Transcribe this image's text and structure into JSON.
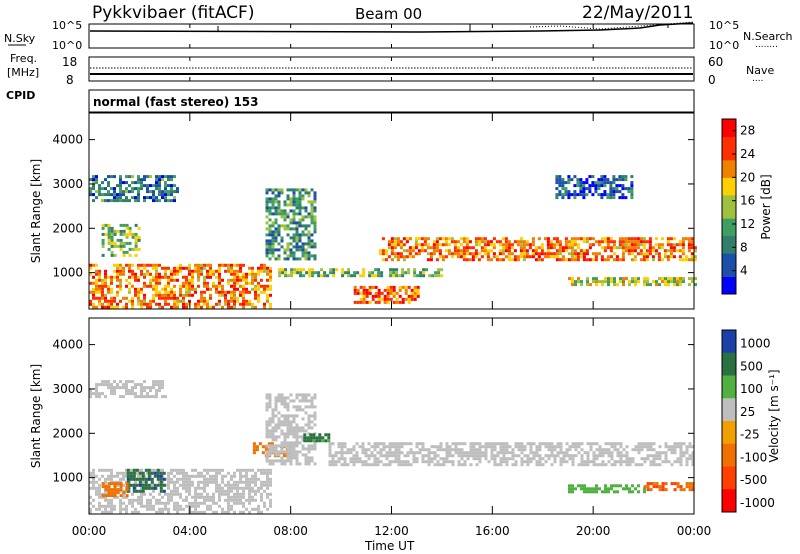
{
  "header": {
    "station": "Pykkvibaer (fitACF)",
    "beam": "Beam 00",
    "date": "22/May/2011",
    "mode_line": "normal (fast stereo) 153"
  },
  "strip_labels": {
    "nsky": "N.Sky",
    "nsearch": "N.Search",
    "nsearch_marker": "........",
    "freq_line1": "Freq.",
    "freq_line2": "[MHz]",
    "cpid": "CPID",
    "nave": "Nave",
    "nave_marker": "....",
    "noise_left_top": "10^5",
    "noise_left_bottom": "10^0",
    "noise_right_top": "10^5",
    "noise_right_bottom": "10^0",
    "freq_left_top": "18",
    "freq_left_bottom": "8",
    "nave_right_top": "60",
    "nave_right_bottom": "0"
  },
  "colors": {
    "power_scale": [
      "#0000ff",
      "#1c50a8",
      "#2f7f6c",
      "#3f9f60",
      "#a0c040",
      "#ffd000",
      "#f08000",
      "#ff3000",
      "#ff0000"
    ],
    "velocity_scale": [
      "#1c3fa8",
      "#2a7040",
      "#50b040",
      "#bebebe",
      "#f0a000",
      "#f07000",
      "#ff4000",
      "#ff0000"
    ]
  },
  "chart_data": [
    {
      "type": "heatmap",
      "name": "power",
      "ylabel": "Slant Range [km]",
      "yticks": [
        1000,
        2000,
        3000,
        4000
      ],
      "ylim": [
        180,
        4600
      ],
      "xlim": [
        0,
        24
      ],
      "colorbar_label": "Power [dB]",
      "colorbar_ticks": [
        "4",
        "8",
        "12",
        "16",
        "20",
        "24",
        "28"
      ],
      "colorbar_range": [
        0,
        30
      ],
      "regions": [
        {
          "t0": 0.0,
          "t1": 7.2,
          "r0": 200,
          "r1": 1200,
          "level": 22
        },
        {
          "t0": 0.5,
          "t1": 2.0,
          "r0": 1400,
          "r1": 2100,
          "level": 14
        },
        {
          "t0": 0.0,
          "t1": 3.5,
          "r0": 2600,
          "r1": 3200,
          "level": 8
        },
        {
          "t0": 7.0,
          "t1": 9.0,
          "r0": 1300,
          "r1": 2900,
          "level": 10
        },
        {
          "t0": 7.5,
          "t1": 14.0,
          "r0": 900,
          "r1": 1100,
          "level": 14
        },
        {
          "t0": 10.5,
          "t1": 13.0,
          "r0": 300,
          "r1": 700,
          "level": 24
        },
        {
          "t0": 11.5,
          "t1": 24.0,
          "r0": 1300,
          "r1": 1800,
          "level": 22
        },
        {
          "t0": 19.0,
          "t1": 24.0,
          "r0": 700,
          "r1": 900,
          "level": 16
        },
        {
          "t0": 18.5,
          "t1": 21.5,
          "r0": 2700,
          "r1": 3200,
          "level": 6
        }
      ]
    },
    {
      "type": "heatmap",
      "name": "velocity",
      "ylabel": "Slant Range [km]",
      "xlabel": "Time UT",
      "xticks": [
        "00:00",
        "04:00",
        "08:00",
        "12:00",
        "16:00",
        "20:00",
        "00:00"
      ],
      "yticks": [
        1000,
        2000,
        3000,
        4000
      ],
      "ylim": [
        180,
        4600
      ],
      "xlim": [
        0,
        24
      ],
      "colorbar_label": "Velocity [m s⁻¹]",
      "colorbar_ticks": [
        "1000",
        "500",
        "100",
        "25",
        "-25",
        "-100",
        "-500",
        "-1000"
      ],
      "regions": [
        {
          "t0": 0.0,
          "t1": 7.2,
          "r0": 200,
          "r1": 1200,
          "v": 0
        },
        {
          "t0": 1.5,
          "t1": 3.0,
          "r0": 700,
          "r1": 1200,
          "v": 600
        },
        {
          "t0": 0.5,
          "t1": 1.5,
          "r0": 600,
          "r1": 900,
          "v": -150
        },
        {
          "t0": 6.5,
          "t1": 8.0,
          "r0": 1500,
          "r1": 1800,
          "v": -200
        },
        {
          "t0": 7.0,
          "t1": 9.0,
          "r0": 1300,
          "r1": 2900,
          "v": 0
        },
        {
          "t0": 8.5,
          "t1": 9.5,
          "r0": 1800,
          "r1": 2000,
          "v": 400
        },
        {
          "t0": 9.5,
          "t1": 24.0,
          "r0": 1300,
          "r1": 1800,
          "v": 0
        },
        {
          "t0": 19.0,
          "t1": 22.0,
          "r0": 650,
          "r1": 850,
          "v": 150
        },
        {
          "t0": 22.0,
          "t1": 24.0,
          "r0": 700,
          "r1": 900,
          "v": -300
        },
        {
          "t0": 0.0,
          "t1": 3.0,
          "r0": 2800,
          "r1": 3200,
          "v": 0
        }
      ]
    }
  ]
}
